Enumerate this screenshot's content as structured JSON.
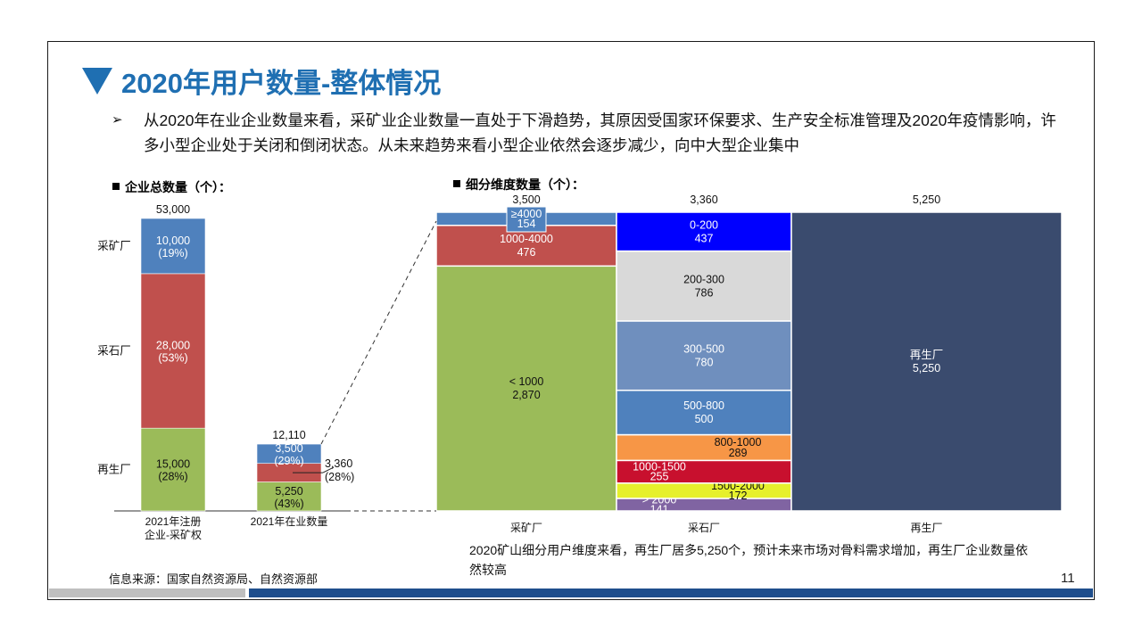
{
  "title": "2020年用户数量-整体情况",
  "bullet": {
    "arrow": "➢",
    "text": "从2020年在业企业数量来看，采矿业企业数量一直处于下滑趋势，其原因受国家环保要求、生产安全标准管理及2020年疫情影响，许多小型企业处于关闭和倒闭状态。从未来趋势来看小型企业依然会逐步减少，向中大型企业集中"
  },
  "section_left": "企业总数量（个）：",
  "section_right": "细分维度数量（个）：",
  "note": "2020矿山细分用户维度来看，再生厂居多5,250个，预计未来市场对骨料需求增加，再生厂企业数量依然较高",
  "source": "信息来源：国家自然资源局、自然资源部",
  "page_number": "11",
  "chart_data": [
    {
      "type": "bar",
      "stacked": true,
      "title": "企业总数量（个）：",
      "categories": [
        "2021年注册\n企业-采矿权",
        "2021年在业数量"
      ],
      "totals": [
        "53,000",
        "12,110"
      ],
      "row_labels": [
        "采矿厂",
        "采石厂",
        "再生厂"
      ],
      "series": [
        {
          "name": "再生厂",
          "color": "#9bbb59",
          "values": [
            15000,
            5250
          ],
          "labels": [
            "15,000",
            "5,250"
          ],
          "pct": [
            "(28%)",
            "(43%)"
          ]
        },
        {
          "name": "采石厂",
          "color": "#c0504d",
          "values": [
            28000,
            3360
          ],
          "labels": [
            "28,000",
            "3,360"
          ],
          "pct": [
            "(53%)",
            "(28%)"
          ]
        },
        {
          "name": "采矿厂",
          "color": "#4f81bd",
          "values": [
            10000,
            3500
          ],
          "labels": [
            "10,000",
            "3,500"
          ],
          "pct": [
            "(19%)",
            "(29%)"
          ]
        }
      ]
    },
    {
      "type": "marimekko",
      "title": "细分维度数量（个）：",
      "columns": [
        {
          "name": "采矿厂",
          "total": 3500,
          "total_label": "3,500",
          "segments": [
            {
              "label": "< 1000",
              "value": 2870,
              "value_label": "2,870",
              "color": "#9bbb59",
              "text_color": "#111111"
            },
            {
              "label": "1000-4000",
              "value": 476,
              "value_label": "476",
              "color": "#c0504d",
              "text_color": "#ffffff"
            },
            {
              "label": "≥4000",
              "value": 154,
              "value_label": "154",
              "color": "#4f81bd",
              "text_color": "#ffffff"
            }
          ]
        },
        {
          "name": "采石厂",
          "total": 3360,
          "total_label": "3,360",
          "segments": [
            {
              "label": "> 2000",
              "value": 141,
              "value_label": "141",
              "color": "#8064a2",
              "text_color": "#ffffff"
            },
            {
              "label": "1500-2000",
              "value": 172,
              "value_label": "172",
              "color": "#e6f02c",
              "text_color": "#111111"
            },
            {
              "label": "1000-1500",
              "value": 255,
              "value_label": "255",
              "color": "#c8102e",
              "text_color": "#ffffff"
            },
            {
              "label": "800-1000",
              "value": 289,
              "value_label": "289",
              "color": "#f79646",
              "text_color": "#111111"
            },
            {
              "label": "500-800",
              "value": 500,
              "value_label": "500",
              "color": "#4f81bd",
              "text_color": "#ffffff"
            },
            {
              "label": "300-500",
              "value": 780,
              "value_label": "780",
              "color": "#6f8fbe",
              "text_color": "#ffffff"
            },
            {
              "label": "200-300",
              "value": 786,
              "value_label": "786",
              "color": "#d9d9d9",
              "text_color": "#111111"
            },
            {
              "label": "0-200",
              "value": 437,
              "value_label": "437",
              "color": "#0000ff",
              "text_color": "#ffffff"
            }
          ]
        },
        {
          "name": "再生厂",
          "total": 5250,
          "total_label": "5,250",
          "segments": [
            {
              "label": "再生厂",
              "value": 5250,
              "value_label": "5,250",
              "color": "#3a4b6e",
              "text_color": "#ffffff"
            }
          ]
        }
      ]
    }
  ]
}
